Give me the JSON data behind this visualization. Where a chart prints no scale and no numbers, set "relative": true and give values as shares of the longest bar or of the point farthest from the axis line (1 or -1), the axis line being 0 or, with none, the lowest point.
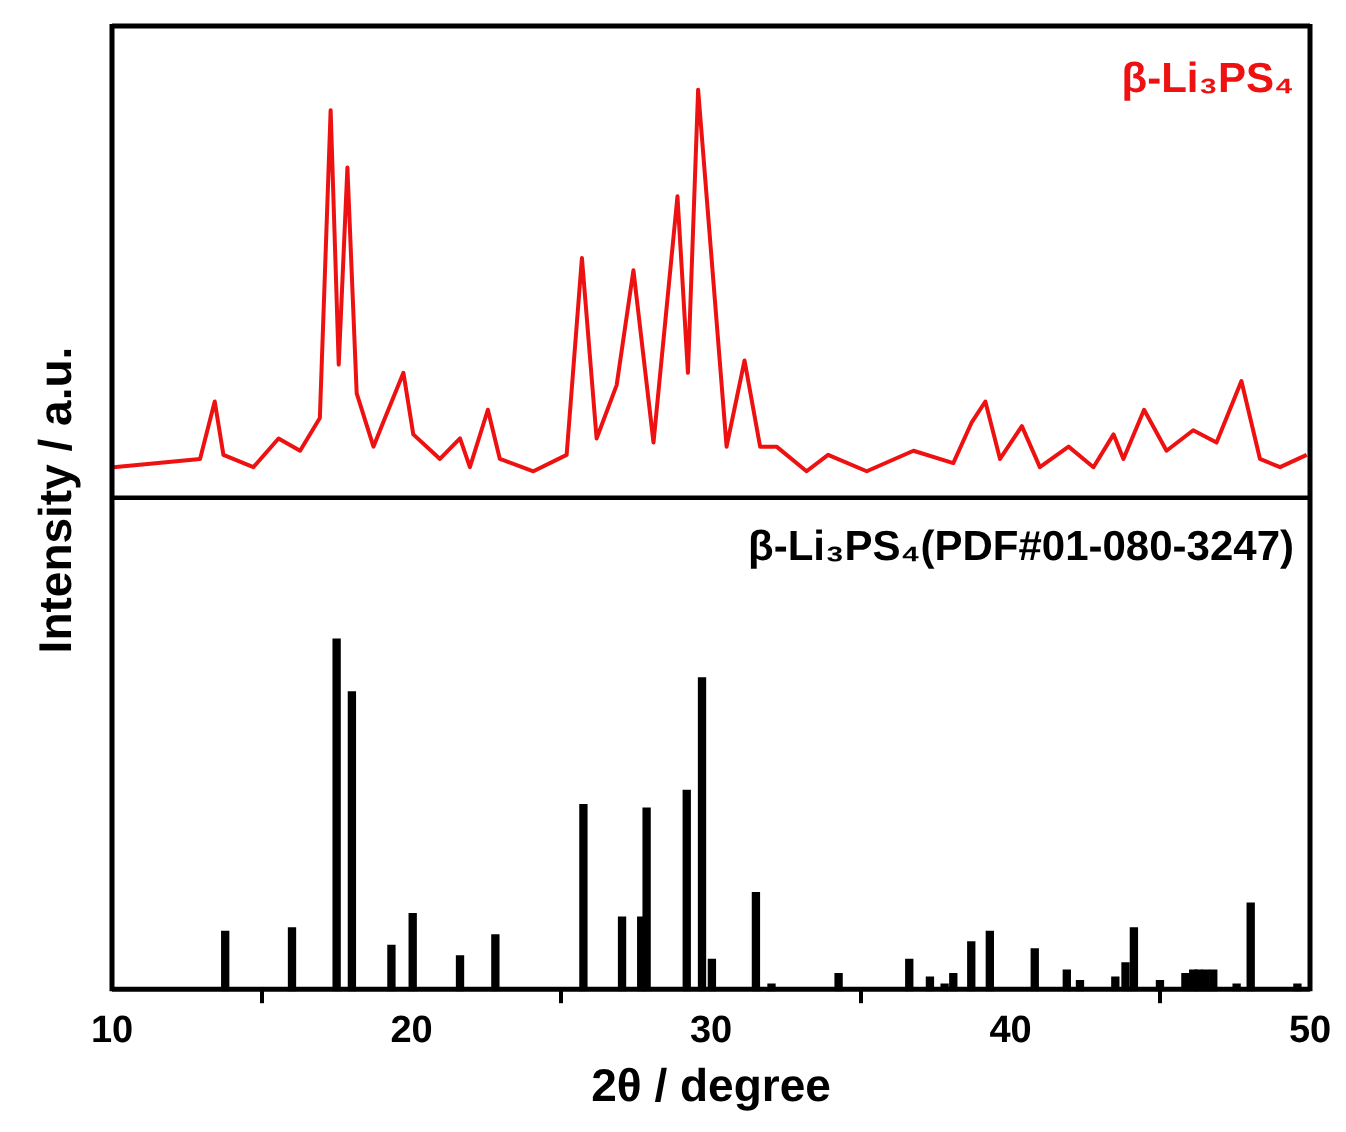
{
  "chart_data": [
    {
      "type": "line",
      "relative": true,
      "ylabel": "Intensity / a.u.",
      "xlim": [
        10,
        50
      ],
      "tick_labels": false,
      "legend": false,
      "marker": "none",
      "series": [
        {
          "name": "β-Li₃PS₄",
          "color": "#ee1111",
          "x": [
            10.05,
            12.94,
            13.43,
            13.72,
            14.72,
            15.56,
            16.28,
            16.94,
            17.3,
            17.57,
            17.86,
            18.17,
            18.73,
            19.06,
            19.73,
            20.06,
            20.95,
            21.62,
            21.95,
            22.55,
            22.95,
            24.07,
            25.18,
            25.69,
            26.18,
            26.85,
            27.41,
            28.08,
            28.88,
            29.23,
            29.57,
            30.52,
            31.12,
            31.64,
            32.19,
            33.19,
            33.91,
            35.2,
            36.76,
            38.09,
            38.71,
            39.16,
            39.65,
            40.38,
            40.98,
            41.94,
            42.77,
            43.44,
            43.77,
            44.46,
            45.21,
            46.1,
            46.88,
            47.71,
            48.33,
            49.0,
            49.89
          ],
          "values": [
            0.08,
            0.1,
            0.24,
            0.11,
            0.08,
            0.15,
            0.12,
            0.2,
            0.95,
            0.33,
            0.81,
            0.26,
            0.13,
            0.19,
            0.31,
            0.16,
            0.1,
            0.15,
            0.08,
            0.22,
            0.1,
            0.07,
            0.11,
            0.59,
            0.15,
            0.28,
            0.56,
            0.14,
            0.74,
            0.31,
            1.0,
            0.13,
            0.34,
            0.13,
            0.13,
            0.07,
            0.11,
            0.07,
            0.12,
            0.09,
            0.19,
            0.24,
            0.1,
            0.18,
            0.08,
            0.13,
            0.08,
            0.16,
            0.1,
            0.22,
            0.12,
            0.17,
            0.14,
            0.29,
            0.1,
            0.08,
            0.11
          ]
        }
      ]
    },
    {
      "type": "bar",
      "relative": true,
      "xlabel": "2θ / degree",
      "xlim": [
        10,
        50
      ],
      "xticks": [
        10,
        20,
        30,
        40,
        50
      ],
      "tick_labels": "x",
      "legend": false,
      "series": [
        {
          "name": "β-Li₃PS₄(PDF#01-080-3247)",
          "color": "#000000",
          "x": [
            13.78,
            16.01,
            17.5,
            18.01,
            19.33,
            20.04,
            21.62,
            22.8,
            25.74,
            27.03,
            27.67,
            27.85,
            29.19,
            29.7,
            30.03,
            31.5,
            32.02,
            34.26,
            36.62,
            37.31,
            37.8,
            38.09,
            38.69,
            39.31,
            40.81,
            41.88,
            42.32,
            43.5,
            43.84,
            44.12,
            44.99,
            45.84,
            46.1,
            46.28,
            46.51,
            46.77,
            47.55,
            48.02,
            49.58
          ],
          "values": [
            0.17,
            0.18,
            1.0,
            0.85,
            0.13,
            0.22,
            0.1,
            0.16,
            0.53,
            0.21,
            0.21,
            0.52,
            0.57,
            0.89,
            0.09,
            0.28,
            0.02,
            0.05,
            0.09,
            0.04,
            0.02,
            0.05,
            0.14,
            0.17,
            0.12,
            0.06,
            0.03,
            0.04,
            0.08,
            0.18,
            0.03,
            0.05,
            0.06,
            0.06,
            0.06,
            0.06,
            0.02,
            0.25,
            0.02
          ]
        }
      ]
    }
  ]
}
